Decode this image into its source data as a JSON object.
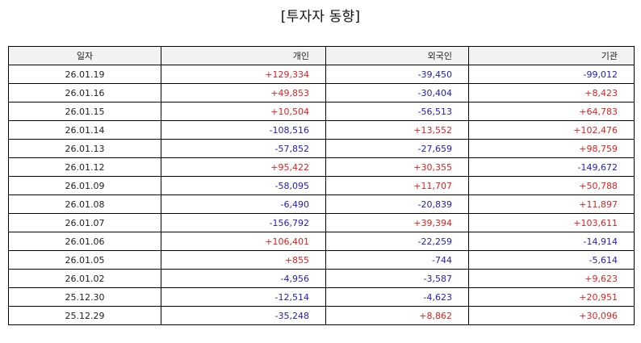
{
  "title": "[투자자 동향]",
  "colors": {
    "positive": "#e02020",
    "negative": "#2020c0"
  },
  "headers": [
    "일자",
    "개인",
    "외국인",
    "기관"
  ],
  "rows": [
    [
      "26.01.19",
      "+129,334",
      "-39,450",
      "-99,012"
    ],
    [
      "26.01.16",
      "+49,853",
      "-30,404",
      "+8,423"
    ],
    [
      "26.01.15",
      "+10,504",
      "-56,513",
      "+64,783"
    ],
    [
      "26.01.14",
      "-108,516",
      "+13,552",
      "+102,476"
    ],
    [
      "26.01.13",
      "-57,852",
      "-27,659",
      "+98,759"
    ],
    [
      "26.01.12",
      "+95,422",
      "+30,355",
      "-149,672"
    ],
    [
      "26.01.09",
      "-58,095",
      "+11,707",
      "+50,788"
    ],
    [
      "26.01.08",
      "-6,490",
      "-20,839",
      "+11,897"
    ],
    [
      "26.01.07",
      "-156,792",
      "+39,394",
      "+103,611"
    ],
    [
      "26.01.06",
      "+106,401",
      "-22,259",
      "-14,914"
    ],
    [
      "26.01.05",
      "+855",
      "-744",
      "-5,614"
    ],
    [
      "26.01.02",
      "-4,956",
      "-3,587",
      "+9,623"
    ],
    [
      "25.12.30",
      "-12,514",
      "-4,623",
      "+20,951"
    ],
    [
      "25.12.29",
      "-35,248",
      "+8,862",
      "+30,096"
    ]
  ]
}
